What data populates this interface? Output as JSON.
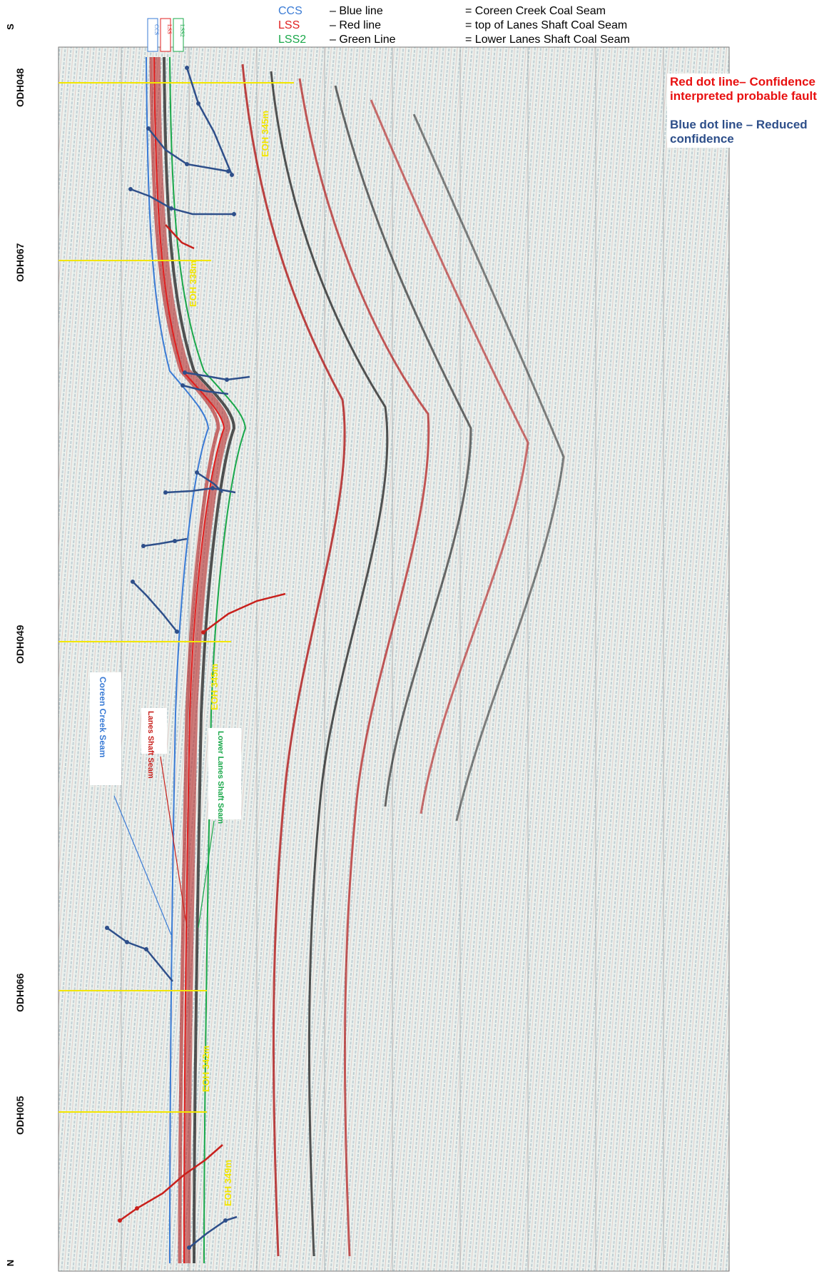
{
  "legend": {
    "rows": [
      {
        "code": "CCS",
        "code_color": "#3a7bd5",
        "desc": "– Blue line",
        "meaning": "= Coreen Creek Coal Seam"
      },
      {
        "code": "LSS",
        "code_color": "#e01f1f",
        "desc": "– Red line",
        "meaning": "= top of Lanes Shaft Coal Seam"
      },
      {
        "code": "LSS2",
        "code_color": "#1aa84a",
        "desc": "– Green Line",
        "meaning": "= Lower Lanes Shaft Coal Seam"
      }
    ]
  },
  "note": {
    "red_text": "Red dot line– Confidence interpreted probable fault",
    "blue_text": "Blue dot line – Reduced confidence"
  },
  "orientation": {
    "top": "S",
    "bottom": "N"
  },
  "wells": [
    "ODH048",
    "ODH067",
    "ODH049",
    "ODH066",
    "ODH005"
  ],
  "seam_callouts": {
    "ccs": "Coreen Creek Seam",
    "lss": "Lanes Shaft Seam",
    "lss2": "Lower Lanes Shaft Seam"
  },
  "eoh_labels": [
    "EOH 345m",
    "EOH 338m",
    "EOH 345m",
    "EOH 342m",
    "EOH 349m"
  ],
  "top_tags": [
    "CCS",
    "LSS",
    "LSS2"
  ],
  "colors": {
    "ccs": "#3a7bd5",
    "lss": "#e01f1f",
    "lss2": "#1aa84a",
    "well_marker": "#f2e600",
    "fault_blue": "#2e4f8a",
    "fault_red": "#c8201c"
  }
}
